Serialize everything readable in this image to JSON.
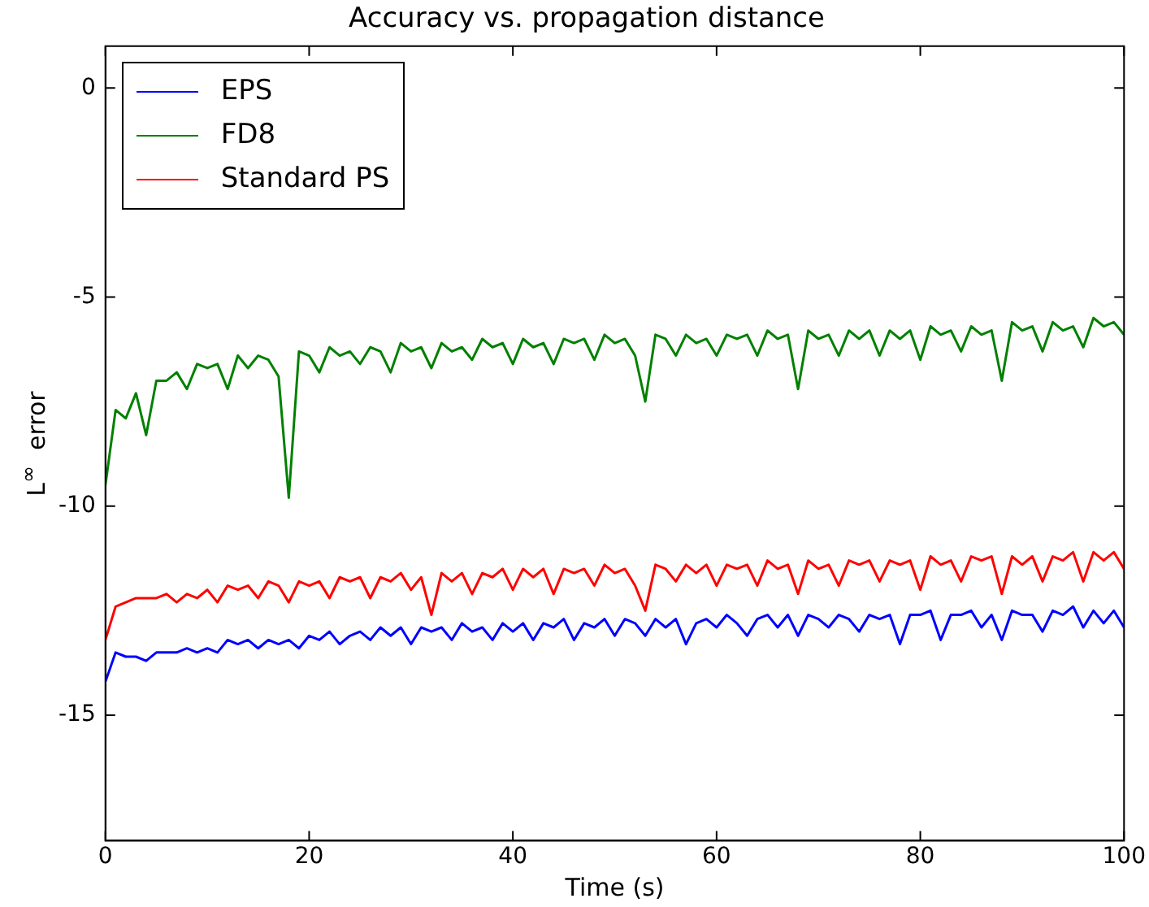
{
  "chart_data": {
    "type": "line",
    "title": "Accuracy vs. propagation distance",
    "xlabel": "Time (s)",
    "ylabel": "L$^{∞}$  error",
    "x": [
      0,
      1,
      2,
      3,
      4,
      5,
      6,
      7,
      8,
      9,
      10,
      11,
      12,
      13,
      14,
      15,
      16,
      17,
      18,
      19,
      20,
      21,
      22,
      23,
      24,
      25,
      26,
      27,
      28,
      29,
      30,
      31,
      32,
      33,
      34,
      35,
      36,
      37,
      38,
      39,
      40,
      41,
      42,
      43,
      44,
      45,
      46,
      47,
      48,
      49,
      50,
      51,
      52,
      53,
      54,
      55,
      56,
      57,
      58,
      59,
      60,
      61,
      62,
      63,
      64,
      65,
      66,
      67,
      68,
      69,
      70,
      71,
      72,
      73,
      74,
      75,
      76,
      77,
      78,
      79,
      80,
      81,
      82,
      83,
      84,
      85,
      86,
      87,
      88,
      89,
      90,
      91,
      92,
      93,
      94,
      95,
      96,
      97,
      98,
      99,
      100
    ],
    "series": [
      {
        "name": "EPS",
        "color": "#0000ff",
        "values": [
          -14.2,
          -13.5,
          -13.6,
          -13.6,
          -13.7,
          -13.5,
          -13.5,
          -13.5,
          -13.4,
          -13.5,
          -13.4,
          -13.5,
          -13.2,
          -13.3,
          -13.2,
          -13.4,
          -13.2,
          -13.3,
          -13.2,
          -13.4,
          -13.1,
          -13.2,
          -13.0,
          -13.3,
          -13.1,
          -13.0,
          -13.2,
          -12.9,
          -13.1,
          -12.9,
          -13.3,
          -12.9,
          -13.0,
          -12.9,
          -13.2,
          -12.8,
          -13.0,
          -12.9,
          -13.2,
          -12.8,
          -13.0,
          -12.8,
          -13.2,
          -12.8,
          -12.9,
          -12.7,
          -13.2,
          -12.8,
          -12.9,
          -12.7,
          -13.1,
          -12.7,
          -12.8,
          -13.1,
          -12.7,
          -12.9,
          -12.7,
          -13.3,
          -12.8,
          -12.7,
          -12.9,
          -12.6,
          -12.8,
          -13.1,
          -12.7,
          -12.6,
          -12.9,
          -12.6,
          -13.1,
          -12.6,
          -12.7,
          -12.9,
          -12.6,
          -12.7,
          -13.0,
          -12.6,
          -12.7,
          -12.6,
          -13.3,
          -12.6,
          -12.6,
          -12.5,
          -13.2,
          -12.6,
          -12.6,
          -12.5,
          -12.9,
          -12.6,
          -13.2,
          -12.5,
          -12.6,
          -12.6,
          -13.0,
          -12.5,
          -12.6,
          -12.4,
          -12.9,
          -12.5,
          -12.8,
          -12.5,
          -12.9
        ]
      },
      {
        "name": "FD8",
        "color": "#008000",
        "values": [
          -9.5,
          -7.7,
          -7.9,
          -7.3,
          -8.3,
          -7.0,
          -7.0,
          -6.8,
          -7.2,
          -6.6,
          -6.7,
          -6.6,
          -7.2,
          -6.4,
          -6.7,
          -6.4,
          -6.5,
          -6.9,
          -9.8,
          -6.3,
          -6.4,
          -6.8,
          -6.2,
          -6.4,
          -6.3,
          -6.6,
          -6.2,
          -6.3,
          -6.8,
          -6.1,
          -6.3,
          -6.2,
          -6.7,
          -6.1,
          -6.3,
          -6.2,
          -6.5,
          -6.0,
          -6.2,
          -6.1,
          -6.6,
          -6.0,
          -6.2,
          -6.1,
          -6.6,
          -6.0,
          -6.1,
          -6.0,
          -6.5,
          -5.9,
          -6.1,
          -6.0,
          -6.4,
          -7.5,
          -5.9,
          -6.0,
          -6.4,
          -5.9,
          -6.1,
          -6.0,
          -6.4,
          -5.9,
          -6.0,
          -5.9,
          -6.4,
          -5.8,
          -6.0,
          -5.9,
          -7.2,
          -5.8,
          -6.0,
          -5.9,
          -6.4,
          -5.8,
          -6.0,
          -5.8,
          -6.4,
          -5.8,
          -6.0,
          -5.8,
          -6.5,
          -5.7,
          -5.9,
          -5.8,
          -6.3,
          -5.7,
          -5.9,
          -5.8,
          -7.0,
          -5.6,
          -5.8,
          -5.7,
          -6.3,
          -5.6,
          -5.8,
          -5.7,
          -6.2,
          -5.5,
          -5.7,
          -5.6,
          -5.9
        ]
      },
      {
        "name": "Standard PS",
        "color": "#ff0000",
        "values": [
          -13.2,
          -12.4,
          -12.3,
          -12.2,
          -12.2,
          -12.2,
          -12.1,
          -12.3,
          -12.1,
          -12.2,
          -12.0,
          -12.3,
          -11.9,
          -12.0,
          -11.9,
          -12.2,
          -11.8,
          -11.9,
          -12.3,
          -11.8,
          -11.9,
          -11.8,
          -12.2,
          -11.7,
          -11.8,
          -11.7,
          -12.2,
          -11.7,
          -11.8,
          -11.6,
          -12.0,
          -11.7,
          -12.6,
          -11.6,
          -11.8,
          -11.6,
          -12.1,
          -11.6,
          -11.7,
          -11.5,
          -12.0,
          -11.5,
          -11.7,
          -11.5,
          -12.1,
          -11.5,
          -11.6,
          -11.5,
          -11.9,
          -11.4,
          -11.6,
          -11.5,
          -11.9,
          -12.5,
          -11.4,
          -11.5,
          -11.8,
          -11.4,
          -11.6,
          -11.4,
          -11.9,
          -11.4,
          -11.5,
          -11.4,
          -11.9,
          -11.3,
          -11.5,
          -11.4,
          -12.1,
          -11.3,
          -11.5,
          -11.4,
          -11.9,
          -11.3,
          -11.4,
          -11.3,
          -11.8,
          -11.3,
          -11.4,
          -11.3,
          -12.0,
          -11.2,
          -11.4,
          -11.3,
          -11.8,
          -11.2,
          -11.3,
          -11.2,
          -12.1,
          -11.2,
          -11.4,
          -11.2,
          -11.8,
          -11.2,
          -11.3,
          -11.1,
          -11.8,
          -11.1,
          -11.3,
          -11.1,
          -11.5
        ]
      }
    ],
    "xlim": [
      0,
      100
    ],
    "xticks": [
      0,
      20,
      40,
      60,
      80,
      100
    ],
    "ylim": [
      -18,
      1
    ],
    "yticks": [
      -15,
      -10,
      -5,
      0
    ],
    "grid": false,
    "legend": "top left",
    "marker": "none",
    "line_style": "solid"
  }
}
